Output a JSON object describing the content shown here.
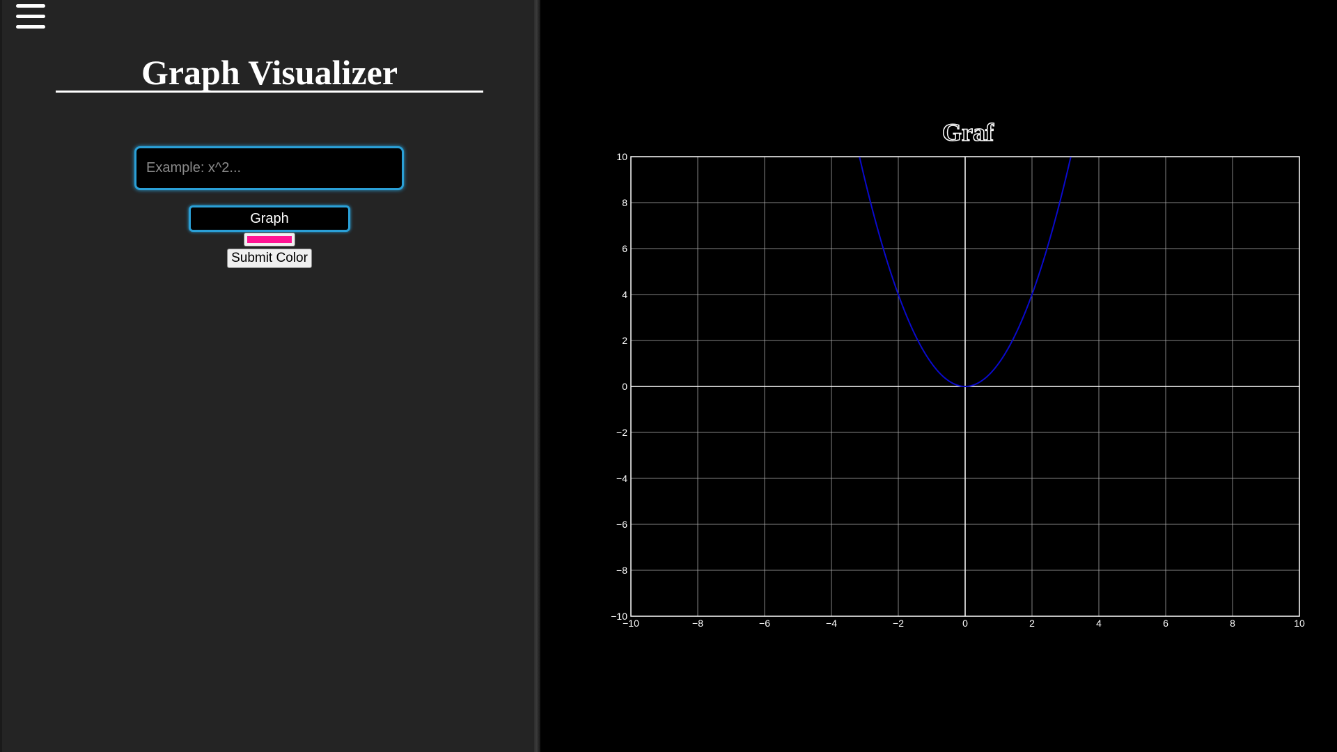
{
  "sidebar": {
    "title": "Graph Visualizer",
    "input_placeholder": "Example: x^2...",
    "graph_button_label": "Graph",
    "selected_color": "#ff1493",
    "submit_color_label": "Submit Color",
    "menu_icon": "hamburger-menu-icon"
  },
  "colors": {
    "sidebar_bg": "#242424",
    "chart_bg": "#000000",
    "accent_glow": "#2a9fd6",
    "curve": "#0a0acc",
    "grid": "#b0b0b0"
  },
  "chart_data": {
    "type": "line",
    "title": "Graf",
    "xlabel": "",
    "ylabel": "",
    "xlim": [
      -10,
      10
    ],
    "ylim": [
      -10,
      10
    ],
    "x_ticks": [
      -10,
      -8,
      -6,
      -4,
      -2,
      0,
      2,
      4,
      6,
      8,
      10
    ],
    "y_ticks": [
      -10,
      -8,
      -6,
      -4,
      -2,
      0,
      2,
      4,
      6,
      8,
      10
    ],
    "x_tick_labels": [
      "−10",
      "−8",
      "−6",
      "−4",
      "−2",
      "0",
      "2",
      "4",
      "6",
      "8",
      "10"
    ],
    "y_tick_labels": [
      "−10",
      "−8",
      "−6",
      "−4",
      "−2",
      "0",
      "2",
      "4",
      "6",
      "8",
      "10"
    ],
    "grid": true,
    "series": [
      {
        "x": [
          -3.16,
          -3,
          -2.5,
          -2,
          -1.5,
          -1,
          -0.5,
          0,
          0.5,
          1,
          1.5,
          2,
          2.5,
          3,
          3.16
        ],
        "y": [
          10,
          9,
          6.25,
          4,
          2.25,
          1,
          0.25,
          0,
          0.25,
          1,
          2.25,
          4,
          6.25,
          9,
          10
        ]
      }
    ]
  }
}
